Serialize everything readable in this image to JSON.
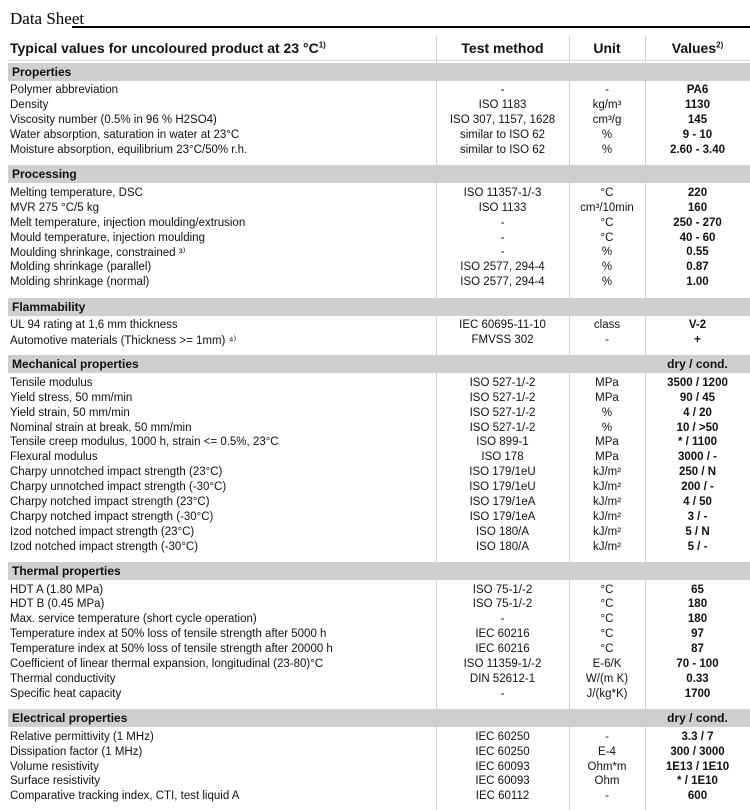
{
  "doc_title": "Data Sheet",
  "header": {
    "col1": "Typical values for uncoloured product  at 23 °C",
    "col1_note": "1)",
    "col2": "Test method",
    "col3": "Unit",
    "col4": "Values",
    "col4_note": "2)"
  },
  "sections": [
    {
      "title": "Properties",
      "suffix": "",
      "rows": [
        [
          "Polymer abbreviation",
          "-",
          "-",
          "PA6"
        ],
        [
          "Density",
          "ISO 1183",
          "kg/m³",
          "1130"
        ],
        [
          "Viscosity number (0.5% in 96 % H2SO4)",
          "ISO 307, 1157, 1628",
          "cm³/g",
          "145"
        ],
        [
          "Water absorption, saturation in water at 23°C",
          "similar to ISO 62",
          "%",
          "9 - 10"
        ],
        [
          "Moisture absorption, equilibrium 23°C/50% r.h.",
          "similar to ISO 62",
          "%",
          "2.60 - 3.40"
        ]
      ]
    },
    {
      "title": "Processing",
      "suffix": "",
      "rows": [
        [
          "Melting temperature, DSC",
          "ISO 11357-1/-3",
          "°C",
          "220"
        ],
        [
          "MVR 275 °C/5 kg",
          "ISO 1133",
          "cm³/10min",
          "160"
        ],
        [
          "Melt temperature, injection moulding/extrusion",
          "-",
          "°C",
          "250 - 270"
        ],
        [
          "Mould temperature, injection moulding",
          "-",
          "°C",
          "40 - 60"
        ],
        [
          "Moulding shrinkage, constrained ³⁾",
          "-",
          "%",
          "0.55"
        ],
        [
          "Molding shrinkage (parallel)",
          "ISO 2577, 294-4",
          "%",
          "0.87"
        ],
        [
          "Molding shrinkage (normal)",
          "ISO 2577, 294-4",
          "%",
          "1.00"
        ]
      ]
    },
    {
      "title": "Flammability",
      "suffix": "",
      "rows": [
        [
          "UL 94 rating at 1,6 mm thickness",
          "IEC 60695-11-10",
          "class",
          "V-2"
        ],
        [
          "Automotive materials (Thickness >= 1mm) ⁴⁾",
          "FMVSS 302",
          "-",
          "+"
        ]
      ]
    },
    {
      "title": "Mechanical properties",
      "suffix": "dry / cond.",
      "rows": [
        [
          "Tensile modulus",
          "ISO 527-1/-2",
          "MPa",
          "3500 / 1200"
        ],
        [
          "Yield stress, 50 mm/min",
          "ISO 527-1/-2",
          "MPa",
          "90 / 45"
        ],
        [
          "Yield strain, 50 mm/min",
          "ISO 527-1/-2",
          "%",
          "4 / 20"
        ],
        [
          "Nominal strain at break, 50 mm/min",
          "ISO 527-1/-2",
          "%",
          "10 / >50"
        ],
        [
          "Tensile creep modulus, 1000 h, strain <= 0.5%, 23°C",
          "ISO 899-1",
          "MPa",
          "* / 1100"
        ],
        [
          "Flexural modulus",
          "ISO 178",
          "MPa",
          "3000 / -"
        ],
        [
          "Charpy unnotched impact strength (23°C)",
          "ISO 179/1eU",
          "kJ/m²",
          "250 / N"
        ],
        [
          "Charpy unnotched impact strength (-30°C)",
          "ISO 179/1eU",
          "kJ/m²",
          "200 / -"
        ],
        [
          "Charpy notched impact strength (23°C)",
          "ISO 179/1eA",
          "kJ/m²",
          "4 / 50"
        ],
        [
          "Charpy notched impact strength (-30°C)",
          "ISO 179/1eA",
          "kJ/m²",
          "3 / -"
        ],
        [
          "Izod notched impact strength (23°C)",
          "ISO 180/A",
          "kJ/m²",
          "5 / N"
        ],
        [
          "Izod notched impact strength (-30°C)",
          "ISO 180/A",
          "kJ/m²",
          "5 / -"
        ]
      ]
    },
    {
      "title": "Thermal properties",
      "suffix": "",
      "rows": [
        [
          "HDT A (1.80 MPa)",
          "ISO 75-1/-2",
          "°C",
          "65"
        ],
        [
          "HDT B (0.45 MPa)",
          "ISO 75-1/-2",
          "°C",
          "180"
        ],
        [
          "Max. service temperature (short cycle operation)",
          "-",
          "°C",
          "180"
        ],
        [
          "Temperature index at 50% loss of tensile strength after 5000 h",
          "IEC 60216",
          "°C",
          "97"
        ],
        [
          "Temperature index at 50% loss of tensile strength after 20000 h",
          "IEC 60216",
          "°C",
          "87"
        ],
        [
          "Coefficient of linear thermal expansion, longitudinal (23-80)°C",
          "ISO 11359-1/-2",
          "E-6/K",
          "70 - 100"
        ],
        [
          "Thermal conductivity",
          "DIN 52612-1",
          "W/(m K)",
          "0.33"
        ],
        [
          "Specific heat capacity",
          "-",
          "J/(kg*K)",
          "1700"
        ]
      ]
    },
    {
      "title": "Electrical properties",
      "suffix": "dry / cond.",
      "rows": [
        [
          "Relative permittivity (1 MHz)",
          "IEC 60250",
          "-",
          "3.3 / 7"
        ],
        [
          "Dissipation factor (1 MHz)",
          "IEC 60250",
          "E-4",
          "300 / 3000"
        ],
        [
          "Volume resistivity",
          "IEC 60093",
          "Ohm*m",
          "1E13 / 1E10"
        ],
        [
          "Surface resistivity",
          "IEC 60093",
          "Ohm",
          "* / 1E10"
        ],
        [
          "Comparative tracking index, CTI, test liquid A",
          "IEC 60112",
          "-",
          "600"
        ]
      ]
    }
  ],
  "colors": {
    "section_bar": "#cfcfcf",
    "divider": "#cfcfcf"
  }
}
